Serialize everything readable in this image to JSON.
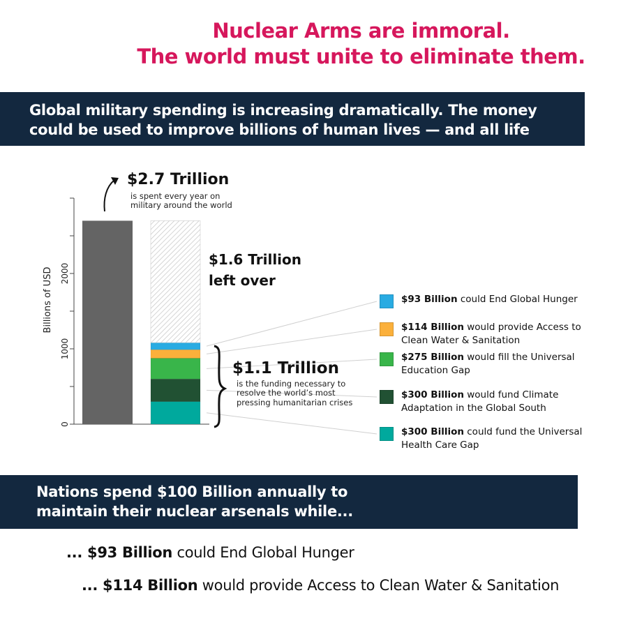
{
  "title": {
    "line1": "Nuclear Arms are immoral.",
    "line2": "The world must unite to eliminate them."
  },
  "banner1": {
    "line1": "Global military spending is increasing dramatically. The money",
    "line2": "could be used to improve billions of human lives — and all life"
  },
  "chart_data": {
    "type": "bar",
    "ylabel": "Billions of USD",
    "ylim": [
      0,
      3000
    ],
    "yticks": [
      0,
      500,
      1000,
      1500,
      2000,
      2500,
      3000
    ],
    "yticklabels": [
      "0",
      "1000",
      "2000"
    ],
    "total_bar": {
      "name": "Global military spending",
      "value": 2700,
      "color": "#646464"
    },
    "stacked_bar": {
      "segments": [
        {
          "name": "Universal Health Care Gap",
          "value": 300,
          "color": "#00a99d"
        },
        {
          "name": "Climate Adaptation in the Global South",
          "value": 300,
          "color": "#215133"
        },
        {
          "name": "Universal Education Gap",
          "value": 275,
          "color": "#39b54a"
        },
        {
          "name": "Clean Water & Sanitation",
          "value": 114,
          "color": "#fbb03b"
        },
        {
          "name": "Global Hunger",
          "value": 93,
          "color": "#29abe2"
        }
      ],
      "leftover": {
        "name": "Left over",
        "value": 1618
      }
    },
    "annotations": {
      "total_big": "$2.7 Trillion",
      "total_small1": "is spent every year on",
      "total_small2": "military around the world",
      "left_big1": "$1.6 Trillion",
      "left_big2": "left over",
      "need_big": "$1.1 Trillion",
      "need_small1": "is the funding necessary to",
      "need_small2": "resolve the world’s most",
      "need_small3": "pressing humanitarian crises"
    },
    "legend": [
      {
        "bold": "$93 Billion",
        "text": " could End Global Hunger",
        "color": "#29abe2"
      },
      {
        "bold": "$114 Billion",
        "text": " would provide Access to Clean Water & Sanitation",
        "color": "#fbb03b"
      },
      {
        "bold": "$275 Billion",
        "text": " would fill the Universal Education Gap",
        "color": "#39b54a"
      },
      {
        "bold": "$300 Billion",
        "text": " would fund Climate Adaptation in the Global South",
        "color": "#215133"
      },
      {
        "bold": "$300 Billion",
        "text": " could fund the Universal Health Care Gap",
        "color": "#00a99d"
      }
    ]
  },
  "banner2": {
    "line1": "Nations spend $100 Billion annually to",
    "line2": "maintain their nuclear arsenals while..."
  },
  "bottom": [
    {
      "prefix": "... ",
      "bold": "$93 Billion",
      "text": " could End Global Hunger"
    },
    {
      "prefix": "... ",
      "bold": "$114 Billion",
      "text": " would provide Access to Clean Water & Sanitation"
    }
  ]
}
